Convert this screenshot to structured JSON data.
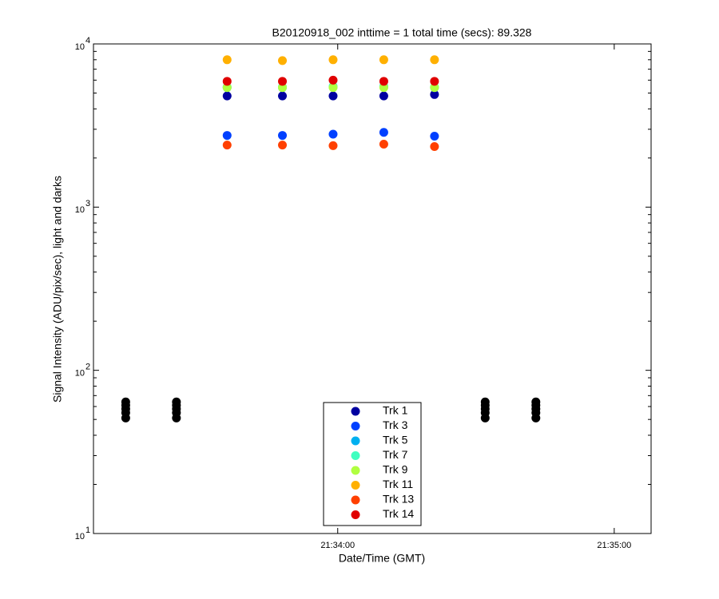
{
  "chart_data": {
    "type": "scatter",
    "title": "B20120918_002 inttime = 1 total time (secs): 89.328",
    "x_label": "Date/Time (GMT)",
    "y_label": "Signal Intensity (ADU/pix/sec), light and darks",
    "log_y": true,
    "xlim": [
      "21:33:07",
      "21:35:08"
    ],
    "xticks": [
      "21:34:00",
      "21:35:00"
    ],
    "ylim": [
      10,
      10000
    ],
    "yticks": [
      {
        "value": 10,
        "label": "10",
        "superscript": "1"
      },
      {
        "value": 100,
        "label": "10",
        "superscript": "2"
      },
      {
        "value": 1000,
        "label": "10",
        "superscript": "3"
      },
      {
        "value": 10000,
        "label": "10",
        "superscript": "4"
      }
    ],
    "legend": "bottom",
    "series": [
      {
        "color": "#000000",
        "x": [
          "21:33:14",
          "21:33:14",
          "21:33:14",
          "21:33:14",
          "21:33:14",
          "21:33:25",
          "21:33:25",
          "21:33:25",
          "21:33:25",
          "21:33:25",
          "21:34:32",
          "21:34:32",
          "21:34:32",
          "21:34:32",
          "21:34:32",
          "21:34:43",
          "21:34:43",
          "21:34:43",
          "21:34:43",
          "21:34:43"
        ],
        "values": [
          51,
          55,
          58,
          61,
          64,
          51,
          55,
          58,
          61,
          64,
          51,
          55,
          58,
          61,
          64,
          51,
          55,
          58,
          61,
          64
        ]
      },
      {
        "name": "Trk 1",
        "color": "#0000a0",
        "x": [
          "21:33:36",
          "21:33:48",
          "21:33:59",
          "21:34:10",
          "21:34:21"
        ],
        "values": [
          4800,
          4800,
          4800,
          4800,
          4900
        ]
      },
      {
        "name": "Trk 3",
        "color": "#0040ff",
        "x": [
          "21:33:36",
          "21:33:48",
          "21:33:59",
          "21:34:10",
          "21:34:21"
        ],
        "values": [
          2750,
          2750,
          2800,
          2870,
          2720
        ]
      },
      {
        "name": "Trk 5",
        "color": "#00b0f0",
        "x": [
          "21:33:36",
          "21:33:48",
          "21:33:59",
          "21:34:10",
          "21:34:21"
        ],
        "values": [
          5400,
          5400,
          5450,
          5450,
          5400
        ]
      },
      {
        "name": "Trk 7",
        "color": "#40ffc0",
        "x": [
          "21:33:36",
          "21:33:48",
          "21:33:59",
          "21:34:10",
          "21:34:21"
        ],
        "values": [
          5450,
          5450,
          5500,
          5500,
          5450
        ]
      },
      {
        "name": "Trk 9",
        "color": "#b0ff40",
        "x": [
          "21:33:36",
          "21:33:48",
          "21:33:59",
          "21:34:10",
          "21:34:21"
        ],
        "values": [
          5400,
          5400,
          5400,
          5400,
          5400
        ]
      },
      {
        "name": "Trk 11",
        "color": "#ffb000",
        "x": [
          "21:33:36",
          "21:33:48",
          "21:33:59",
          "21:34:10",
          "21:34:21"
        ],
        "values": [
          8000,
          7900,
          8000,
          8000,
          8000
        ]
      },
      {
        "name": "Trk 13",
        "color": "#ff4000",
        "x": [
          "21:33:36",
          "21:33:48",
          "21:33:59",
          "21:34:10",
          "21:34:21"
        ],
        "values": [
          2400,
          2400,
          2380,
          2430,
          2350
        ]
      },
      {
        "name": "Trk 14",
        "color": "#e00000",
        "x": [
          "21:33:36",
          "21:33:48",
          "21:33:59",
          "21:34:10",
          "21:34:21"
        ],
        "values": [
          5900,
          5900,
          6000,
          5900,
          5900
        ]
      }
    ]
  }
}
